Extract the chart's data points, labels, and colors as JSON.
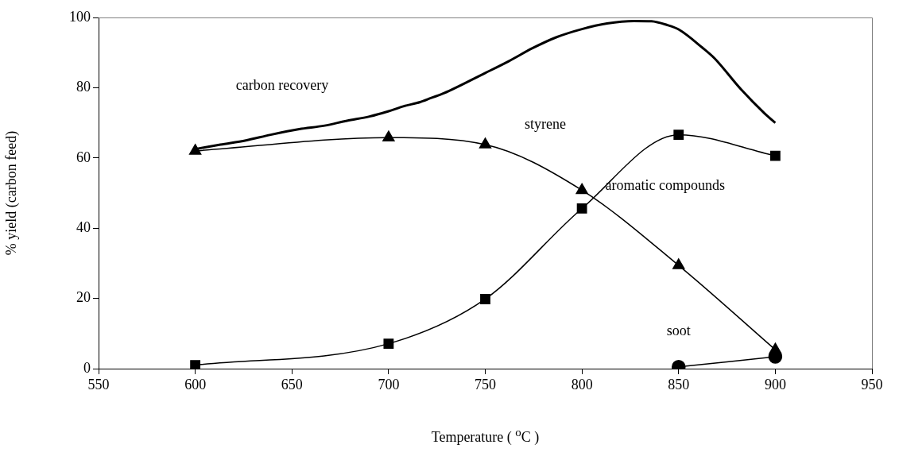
{
  "chart_data": {
    "type": "line",
    "xlabel": "Temperature ( $^{o}$C )",
    "ylabel": "% yield (carbon feed)",
    "xlim": [
      550,
      950
    ],
    "xticks": [
      550,
      600,
      650,
      700,
      750,
      800,
      850,
      900,
      950
    ],
    "ylim": [
      0,
      100
    ],
    "yticks": [
      0,
      20,
      40,
      60,
      80,
      100
    ],
    "grid": false,
    "legend": false,
    "series": [
      {
        "name": "carbon recovery",
        "color": "#000000",
        "marker": "none",
        "x": [
          600,
          613,
          626.2,
          639,
          653.8,
          666.9,
          678.5,
          690.1,
          700,
          707.6,
          716.3,
          722.1,
          728.5,
          750,
          762.3,
          774.6,
          786.9,
          800,
          813,
          826.9,
          836,
          843.8,
          850,
          862.3,
          868.5,
          882.3,
          894.6,
          900
        ],
        "values": [
          62.5,
          63.8,
          65,
          66.6,
          68.2,
          69.2,
          70.6,
          71.8,
          73.3,
          74.7,
          75.9,
          77.1,
          78.4,
          84.2,
          87.6,
          91.3,
          94.4,
          96.7,
          98.3,
          99,
          98.9,
          97.9,
          96.6,
          91.4,
          88.4,
          79.5,
          72.6,
          70
        ]
      },
      {
        "name": "styrene",
        "color": "#000000",
        "marker": "triangle",
        "x": [
          600,
          700,
          750,
          800,
          850,
          900
        ],
        "values": [
          62,
          65.8,
          63.8,
          50.8,
          29.4,
          5.4
        ]
      },
      {
        "name": "aromatic compounds",
        "color": "#000000",
        "marker": "square",
        "x": [
          600,
          700,
          750,
          800,
          850,
          900
        ],
        "values": [
          1,
          7.1,
          19.8,
          45.6,
          66.6,
          60.6
        ]
      },
      {
        "name": "soot",
        "color": "#000000",
        "marker": "circle",
        "x": [
          850,
          900
        ],
        "values": [
          0.5,
          3.4
        ]
      }
    ]
  }
}
